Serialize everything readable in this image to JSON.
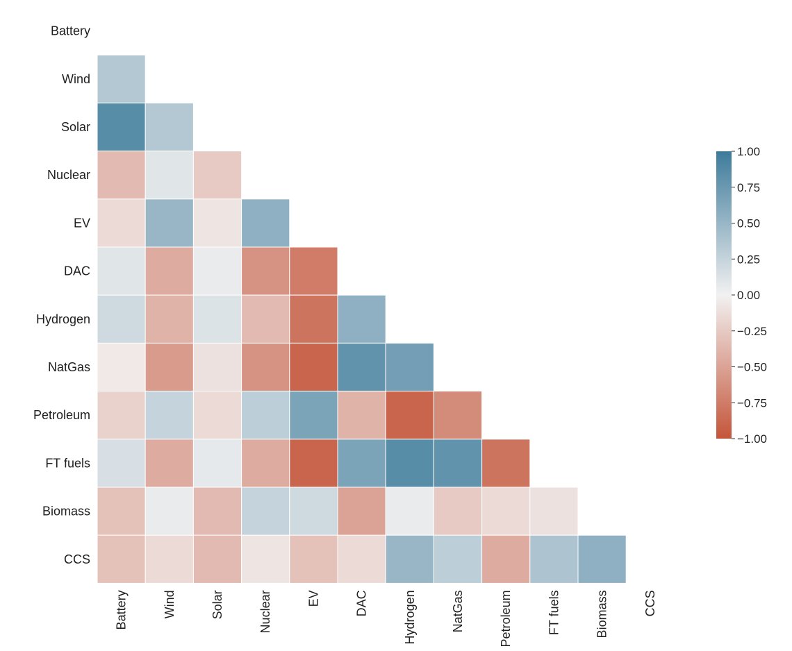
{
  "chart_data": {
    "type": "heatmap",
    "title": "",
    "xlabel": "",
    "ylabel": "",
    "mask": "upper-triangle-including-diagonal",
    "row_labels": [
      "Battery",
      "Wind",
      "Solar",
      "Nuclear",
      "EV",
      "DAC",
      "Hydrogen",
      "NatGas",
      "Petroleum",
      "FT fuels",
      "Biomass",
      "CCS"
    ],
    "col_labels": [
      "Battery",
      "Wind",
      "Solar",
      "Nuclear",
      "EV",
      "DAC",
      "Hydrogen",
      "NatGas",
      "Petroleum",
      "FT fuels",
      "Biomass",
      "CCS"
    ],
    "values": [
      [],
      [
        0.35
      ],
      [
        0.85,
        0.35
      ],
      [
        -0.35,
        0.1,
        -0.25
      ],
      [
        -0.15,
        0.5,
        -0.08,
        0.55
      ],
      [
        0.1,
        -0.45,
        0.05,
        -0.6,
        -0.75
      ],
      [
        0.2,
        -0.4,
        0.12,
        -0.35,
        -0.8,
        0.55
      ],
      [
        -0.05,
        -0.55,
        -0.1,
        -0.6,
        -0.9,
        0.8,
        0.7
      ],
      [
        -0.2,
        0.25,
        -0.15,
        0.3,
        0.65,
        -0.4,
        -0.9,
        -0.65
      ],
      [
        0.15,
        -0.45,
        0.07,
        -0.45,
        -0.9,
        0.65,
        0.85,
        0.8,
        -0.8
      ],
      [
        -0.3,
        0.05,
        -0.35,
        0.25,
        0.2,
        -0.5,
        0.05,
        -0.25,
        -0.15,
        -0.1
      ],
      [
        -0.3,
        -0.15,
        -0.35,
        -0.08,
        -0.3,
        -0.15,
        0.5,
        0.3,
        -0.45,
        0.38,
        0.55
      ]
    ],
    "colorbar": {
      "vmin": -1.0,
      "vmax": 1.0,
      "ticks": [
        1.0,
        0.75,
        0.5,
        0.25,
        0.0,
        -0.25,
        -0.5,
        -0.75,
        -1.0
      ],
      "tick_labels": [
        "1.00",
        "0.75",
        "0.50",
        "0.25",
        "0.00",
        "−0.25",
        "−0.50",
        "−0.75",
        "−1.00"
      ],
      "placement": "right"
    },
    "colors": {
      "negative": "#c4553a",
      "neutral": "#f2f1f1",
      "positive": "#3d7b9b"
    },
    "grid": false
  }
}
